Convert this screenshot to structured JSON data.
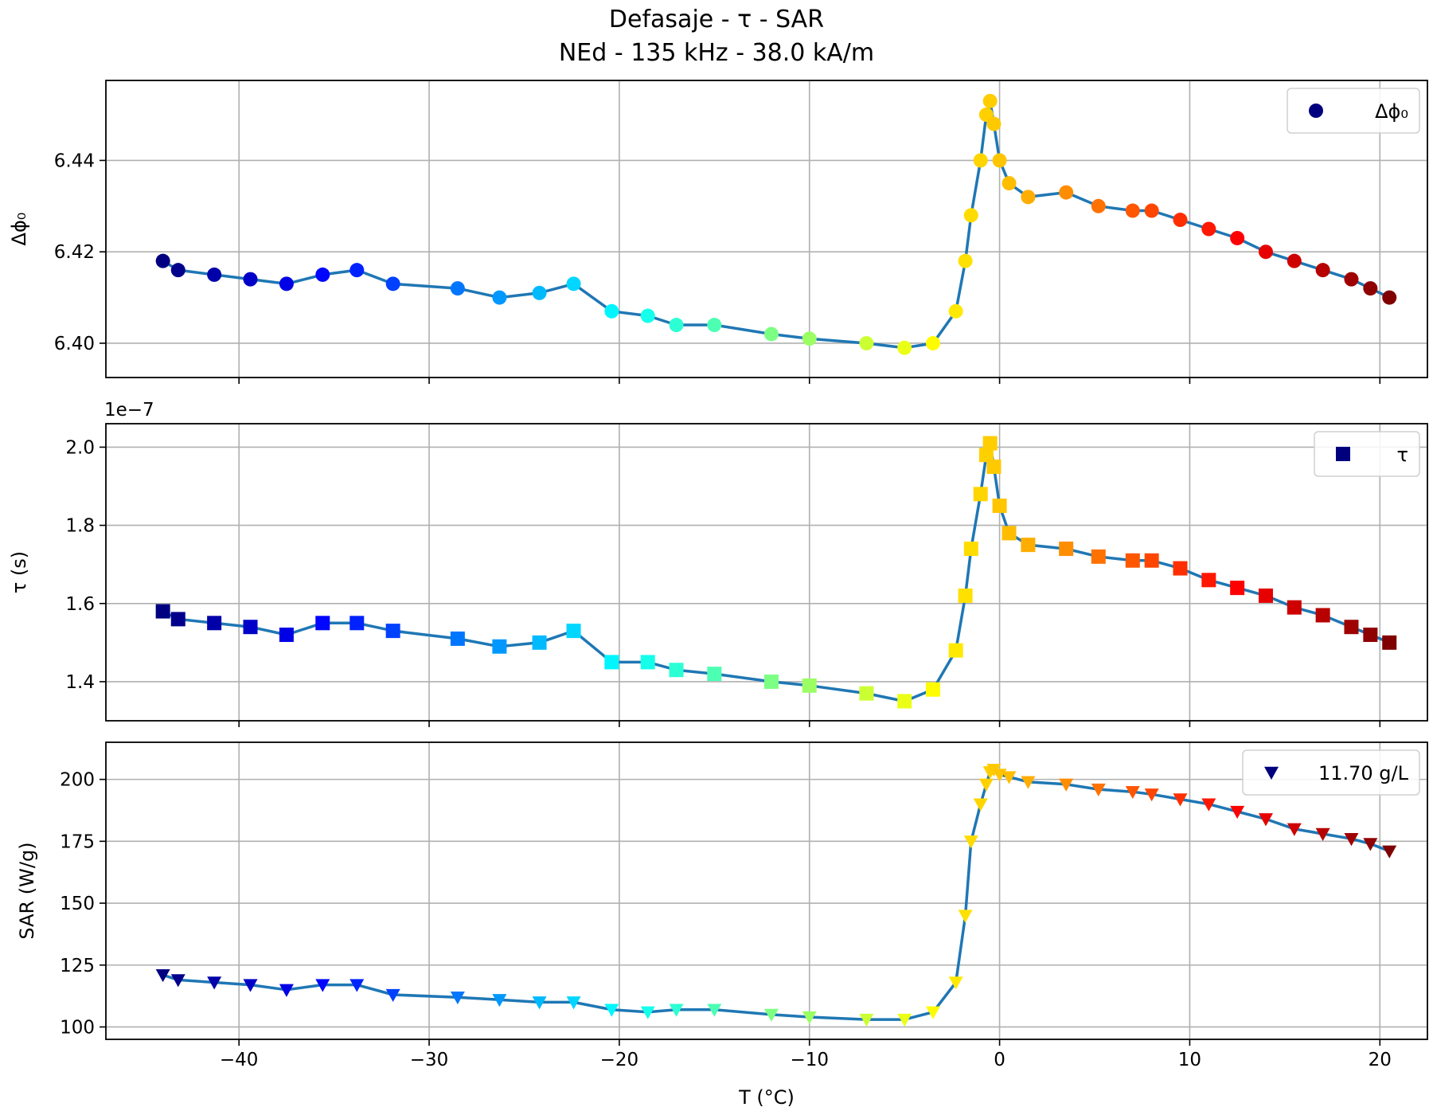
{
  "title": {
    "line1": "Defasaje - τ - SAR",
    "line2": "NEd - 135 kHz - 38.0 kA/m"
  },
  "colors": {
    "line": "#1f77b4",
    "grid": "#b0b0b0",
    "colormap": "jet"
  },
  "xaxis": {
    "label": "T (°C)",
    "range": [
      -47,
      22.5
    ],
    "ticks": [
      -40,
      -30,
      -20,
      -10,
      0,
      10,
      20
    ],
    "tick_labels": [
      "−40",
      "−30",
      "−20",
      "−10",
      "0",
      "10",
      "20"
    ]
  },
  "chart_data": [
    {
      "type": "scatter",
      "ylabel": "Δϕ₀",
      "ylim": [
        6.3925,
        6.4575
      ],
      "yticks": [
        6.4,
        6.42,
        6.44
      ],
      "ytick_labels": [
        "6.40",
        "6.42",
        "6.44"
      ],
      "marker": "circle",
      "grid": true,
      "legend": {
        "position": "top-right",
        "label": "Δϕ₀"
      },
      "series": [
        {
          "x": [
            -44.0,
            -43.2,
            -41.3,
            -39.4,
            -37.5,
            -35.6,
            -33.8,
            -31.9,
            -28.5,
            -26.3,
            -24.2,
            -22.4,
            -20.4,
            -18.5,
            -17.0,
            -15.0,
            -12.0,
            -10.0,
            -7.0,
            -5.0,
            -3.5,
            -2.3,
            -1.8,
            -1.5,
            -1.0,
            -0.7,
            -0.5,
            -0.3,
            0.0,
            0.5,
            1.5,
            3.5,
            5.2,
            7.0,
            8.0,
            9.5,
            11.0,
            12.5,
            14.0,
            15.5,
            17.0,
            18.5,
            19.5,
            20.5
          ],
          "y": [
            6.418,
            6.416,
            6.415,
            6.414,
            6.413,
            6.415,
            6.416,
            6.413,
            6.412,
            6.41,
            6.411,
            6.413,
            6.407,
            6.406,
            6.404,
            6.404,
            6.402,
            6.401,
            6.4,
            6.399,
            6.4,
            6.407,
            6.418,
            6.428,
            6.44,
            6.45,
            6.453,
            6.448,
            6.44,
            6.435,
            6.432,
            6.433,
            6.43,
            6.429,
            6.429,
            6.427,
            6.425,
            6.423,
            6.42,
            6.418,
            6.416,
            6.414,
            6.412,
            6.41
          ]
        }
      ]
    },
    {
      "type": "scatter",
      "ylabel": "τ (s)",
      "offset_label": "1e−7",
      "ylim": [
        1.3,
        2.06
      ],
      "yticks": [
        1.4,
        1.6,
        1.8,
        2.0
      ],
      "ytick_labels": [
        "1.4",
        "1.6",
        "1.8",
        "2.0"
      ],
      "marker": "square",
      "grid": true,
      "legend": {
        "position": "top-right",
        "label": "τ"
      },
      "series": [
        {
          "x": [
            -44.0,
            -43.2,
            -41.3,
            -39.4,
            -37.5,
            -35.6,
            -33.8,
            -31.9,
            -28.5,
            -26.3,
            -24.2,
            -22.4,
            -20.4,
            -18.5,
            -17.0,
            -15.0,
            -12.0,
            -10.0,
            -7.0,
            -5.0,
            -3.5,
            -2.3,
            -1.8,
            -1.5,
            -1.0,
            -0.7,
            -0.5,
            -0.3,
            0.0,
            0.5,
            1.5,
            3.5,
            5.2,
            7.0,
            8.0,
            9.5,
            11.0,
            12.5,
            14.0,
            15.5,
            17.0,
            18.5,
            19.5,
            20.5
          ],
          "y": [
            1.58,
            1.56,
            1.55,
            1.54,
            1.52,
            1.55,
            1.55,
            1.53,
            1.51,
            1.49,
            1.5,
            1.53,
            1.45,
            1.45,
            1.43,
            1.42,
            1.4,
            1.39,
            1.37,
            1.35,
            1.38,
            1.48,
            1.62,
            1.74,
            1.88,
            1.98,
            2.01,
            1.95,
            1.85,
            1.78,
            1.75,
            1.74,
            1.72,
            1.71,
            1.71,
            1.69,
            1.66,
            1.64,
            1.62,
            1.59,
            1.57,
            1.54,
            1.52,
            1.5
          ]
        }
      ]
    },
    {
      "type": "scatter",
      "ylabel": "SAR (W/g)",
      "ylim": [
        95,
        215
      ],
      "yticks": [
        100,
        125,
        150,
        175,
        200
      ],
      "ytick_labels": [
        "100",
        "125",
        "150",
        "175",
        "200"
      ],
      "marker": "triangle-down",
      "grid": true,
      "legend": {
        "position": "top-right",
        "label": "11.70 g/L"
      },
      "series": [
        {
          "x": [
            -44.0,
            -43.2,
            -41.3,
            -39.4,
            -37.5,
            -35.6,
            -33.8,
            -31.9,
            -28.5,
            -26.3,
            -24.2,
            -22.4,
            -20.4,
            -18.5,
            -17.0,
            -15.0,
            -12.0,
            -10.0,
            -7.0,
            -5.0,
            -3.5,
            -2.3,
            -1.8,
            -1.5,
            -1.0,
            -0.7,
            -0.5,
            -0.3,
            0.0,
            0.5,
            1.5,
            3.5,
            5.2,
            7.0,
            8.0,
            9.5,
            11.0,
            12.5,
            14.0,
            15.5,
            17.0,
            18.5,
            19.5,
            20.5
          ],
          "y": [
            121,
            119,
            118,
            117,
            115,
            117,
            117,
            113,
            112,
            111,
            110,
            110,
            107,
            106,
            107,
            107,
            105,
            104,
            103,
            103,
            106,
            118,
            145,
            175,
            190,
            198,
            203,
            204,
            202,
            201,
            199,
            198,
            196,
            195,
            194,
            192,
            190,
            187,
            184,
            180,
            178,
            176,
            174,
            171
          ]
        }
      ]
    }
  ]
}
